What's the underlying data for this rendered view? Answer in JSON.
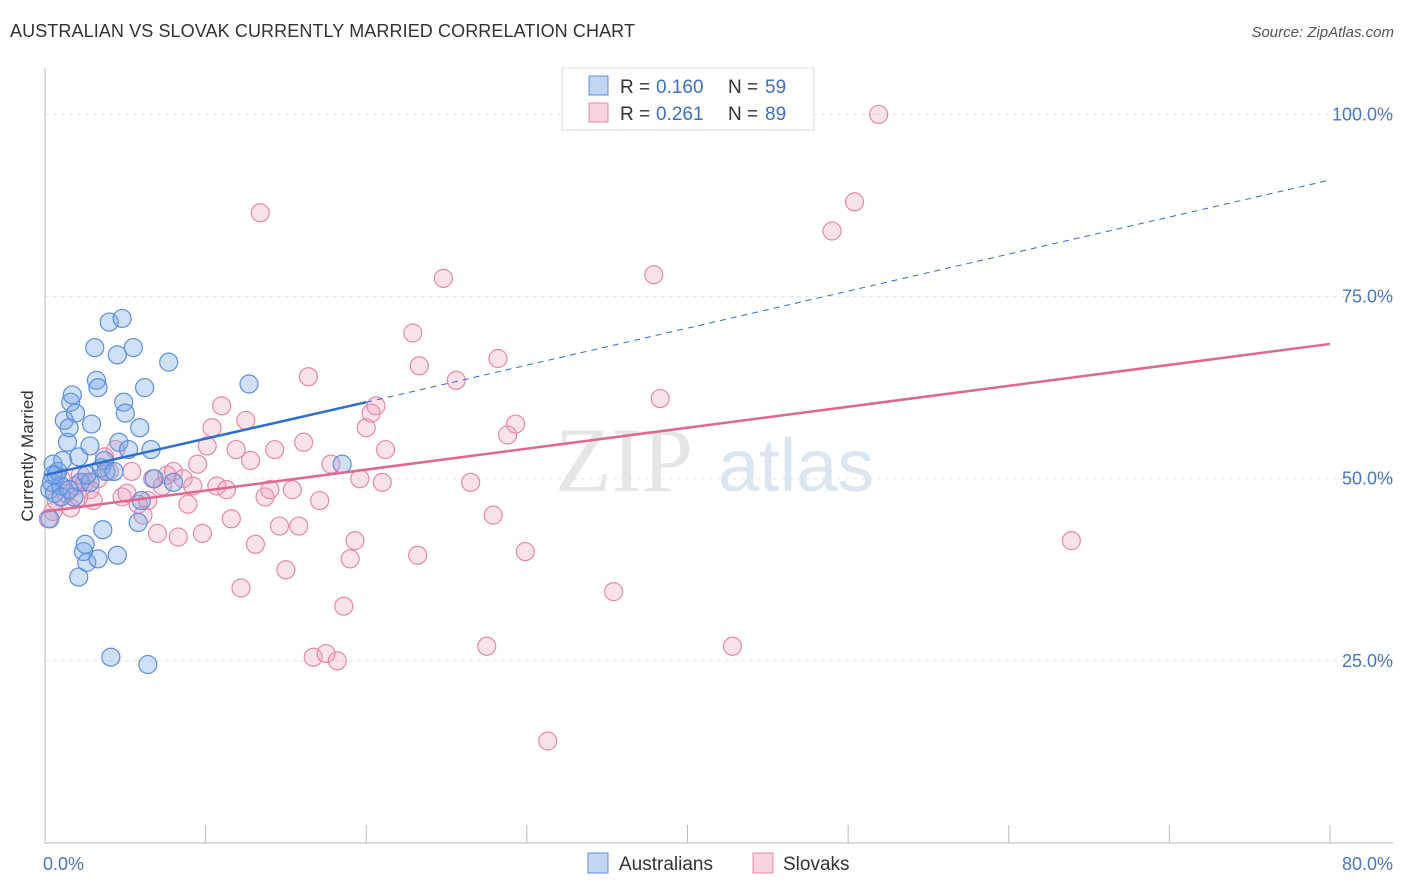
{
  "header": {
    "title": "AUSTRALIAN VS SLOVAK CURRENTLY MARRIED CORRELATION CHART",
    "source": "Source: ZipAtlas.com"
  },
  "watermark": {
    "zip": "ZIP",
    "atlas": "atlas"
  },
  "colors": {
    "blue": "#5b8fe0",
    "blue_fill": "rgba(120,165,230,0.35)",
    "blue_line": "#2b6fd0",
    "pink": "#e888a8",
    "pink_fill": "rgba(240,160,190,0.30)",
    "pink_line": "#e06890",
    "axis_text": "#4a76c4"
  },
  "legend": {
    "r_label": "R =",
    "n_label": "N =",
    "series": [
      {
        "name": "Australians",
        "r": "0.160",
        "n": "59"
      },
      {
        "name": "Slovaks",
        "r": "0.261",
        "n": "89"
      }
    ]
  },
  "chart_data": {
    "type": "scatter",
    "title": "AUSTRALIAN VS SLOVAK CURRENTLY MARRIED CORRELATION CHART",
    "xlabel": "",
    "ylabel": "Currently Married",
    "xlim": [
      0,
      80
    ],
    "ylim": [
      0,
      105
    ],
    "x_tick_labels": {
      "min": "0.0%",
      "max": "80.0%"
    },
    "y_ticks": [
      {
        "value": 25,
        "label": "25.0%"
      },
      {
        "value": 50,
        "label": "50.0%"
      },
      {
        "value": 75,
        "label": "75.0%"
      },
      {
        "value": 100,
        "label": "100.0%"
      }
    ],
    "series": [
      {
        "name": "Australians",
        "r": 0.16,
        "n": 59,
        "trend": {
          "x0": 0,
          "y0": 50.5,
          "x1": 20,
          "y1": 60.5,
          "dash_to_x": 80,
          "dash_to_y": 91
        },
        "points": [
          [
            0.3,
            44.5
          ],
          [
            0.3,
            48.5
          ],
          [
            0.4,
            49.5
          ],
          [
            0.5,
            52
          ],
          [
            0.6,
            48
          ],
          [
            0.7,
            50.5
          ],
          [
            0.8,
            51
          ],
          [
            1,
            49
          ],
          [
            1,
            47.5
          ],
          [
            1.1,
            52.5
          ],
          [
            1.2,
            58
          ],
          [
            1.4,
            55
          ],
          [
            1.5,
            57
          ],
          [
            1.6,
            60.5
          ],
          [
            1.7,
            61.5
          ],
          [
            1.8,
            47.5
          ],
          [
            1.9,
            59
          ],
          [
            2.1,
            53
          ],
          [
            2.2,
            49.5
          ],
          [
            2.1,
            36.5
          ],
          [
            2.4,
            40
          ],
          [
            2.5,
            41
          ],
          [
            2.6,
            38.5
          ],
          [
            2.8,
            49.5
          ],
          [
            2.8,
            54.5
          ],
          [
            2.9,
            57.5
          ],
          [
            3.1,
            68
          ],
          [
            3.2,
            63.5
          ],
          [
            3.3,
            39
          ],
          [
            3.3,
            62.5
          ],
          [
            3.5,
            51.5
          ],
          [
            3.6,
            43
          ],
          [
            3.7,
            52.5
          ],
          [
            3.8,
            51
          ],
          [
            4,
            71.5
          ],
          [
            4.1,
            25.5
          ],
          [
            4.3,
            51
          ],
          [
            4.5,
            67
          ],
          [
            4.5,
            39.5
          ],
          [
            4.6,
            55
          ],
          [
            4.8,
            72
          ],
          [
            4.9,
            60.5
          ],
          [
            5,
            59
          ],
          [
            5.2,
            54
          ],
          [
            5.5,
            68
          ],
          [
            5.8,
            44
          ],
          [
            5.9,
            57
          ],
          [
            6,
            47
          ],
          [
            6.2,
            62.5
          ],
          [
            6.4,
            24.5
          ],
          [
            6.6,
            54
          ],
          [
            6.8,
            50
          ],
          [
            7.7,
            66
          ],
          [
            8,
            49.5
          ],
          [
            12.7,
            63
          ],
          [
            18.5,
            52
          ],
          [
            0.5,
            50.5
          ],
          [
            1.5,
            48.5
          ],
          [
            2.6,
            50.5
          ]
        ]
      },
      {
        "name": "Slovaks",
        "r": 0.261,
        "n": 89,
        "trend": {
          "x0": 0,
          "y0": 45.5,
          "x1": 80,
          "y1": 68.5
        },
        "points": [
          [
            0.2,
            44.5
          ],
          [
            0.5,
            45.5
          ],
          [
            0.7,
            47
          ],
          [
            1,
            50
          ],
          [
            1.3,
            48
          ],
          [
            1.6,
            46
          ],
          [
            1.9,
            49
          ],
          [
            2.2,
            50.5
          ],
          [
            2.5,
            49.5
          ],
          [
            2.8,
            48.5
          ],
          [
            3,
            47
          ],
          [
            3.3,
            50
          ],
          [
            3.7,
            53
          ],
          [
            4,
            51
          ],
          [
            4.4,
            54
          ],
          [
            4.8,
            47.5
          ],
          [
            5.1,
            48
          ],
          [
            5.4,
            51
          ],
          [
            5.8,
            46.5
          ],
          [
            6.1,
            45
          ],
          [
            6.4,
            47
          ],
          [
            6.7,
            50
          ],
          [
            7,
            42.5
          ],
          [
            7.3,
            49
          ],
          [
            7.6,
            50.5
          ],
          [
            8,
            51
          ],
          [
            8.3,
            42
          ],
          [
            8.6,
            50
          ],
          [
            8.9,
            46.5
          ],
          [
            9.2,
            49
          ],
          [
            9.5,
            52
          ],
          [
            9.8,
            42.5
          ],
          [
            10.1,
            54.5
          ],
          [
            10.4,
            57
          ],
          [
            10.7,
            49
          ],
          [
            11,
            60
          ],
          [
            11.3,
            48.5
          ],
          [
            11.6,
            44.5
          ],
          [
            11.9,
            54
          ],
          [
            12.2,
            35
          ],
          [
            12.5,
            58
          ],
          [
            12.8,
            52.5
          ],
          [
            13.1,
            41
          ],
          [
            13.4,
            86.5
          ],
          [
            13.7,
            47.5
          ],
          [
            14,
            48.5
          ],
          [
            14.3,
            54
          ],
          [
            14.6,
            43.5
          ],
          [
            15,
            37.5
          ],
          [
            15.4,
            48.5
          ],
          [
            15.8,
            43.5
          ],
          [
            16.1,
            55
          ],
          [
            16.4,
            64
          ],
          [
            16.7,
            25.5
          ],
          [
            17.1,
            47
          ],
          [
            17.5,
            26
          ],
          [
            17.8,
            52
          ],
          [
            18.2,
            25
          ],
          [
            18.6,
            32.5
          ],
          [
            19,
            39
          ],
          [
            19.3,
            41.5
          ],
          [
            19.6,
            50
          ],
          [
            20,
            57
          ],
          [
            20.3,
            59
          ],
          [
            20.6,
            60
          ],
          [
            21,
            49.5
          ],
          [
            21.2,
            54
          ],
          [
            22.9,
            70
          ],
          [
            23.2,
            39.5
          ],
          [
            23.3,
            65.5
          ],
          [
            24.8,
            77.5
          ],
          [
            25.6,
            63.5
          ],
          [
            26.5,
            49.5
          ],
          [
            27.5,
            27
          ],
          [
            27.9,
            45
          ],
          [
            28.2,
            66.5
          ],
          [
            28.8,
            56
          ],
          [
            29.3,
            57.5
          ],
          [
            29.9,
            40
          ],
          [
            31.3,
            14
          ],
          [
            35.4,
            34.5
          ],
          [
            37.9,
            78
          ],
          [
            38.3,
            61
          ],
          [
            42.8,
            27
          ],
          [
            49,
            84
          ],
          [
            50.4,
            88
          ],
          [
            51.9,
            100
          ],
          [
            63.9,
            41.5
          ],
          [
            2.1,
            47.5
          ]
        ]
      }
    ]
  }
}
